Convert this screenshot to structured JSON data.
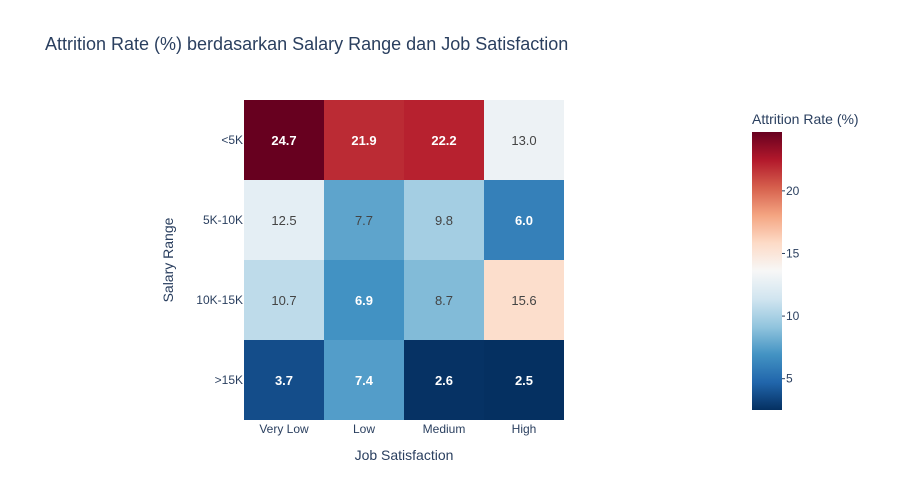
{
  "chart_data": {
    "type": "heatmap",
    "title": "Attrition Rate (%) berdasarkan Salary Range dan Job Satisfaction",
    "xlabel": "Job Satisfaction",
    "ylabel": "Salary Range",
    "x_categories": [
      "Very Low",
      "Low",
      "Medium",
      "High"
    ],
    "y_categories": [
      "<5K",
      "5K-10K",
      "10K-15K",
      ">15K"
    ],
    "values": [
      [
        24.7,
        21.9,
        22.2,
        13.0
      ],
      [
        12.5,
        7.7,
        9.8,
        6.0
      ],
      [
        10.7,
        6.9,
        8.7,
        15.6
      ],
      [
        3.7,
        7.4,
        2.6,
        2.5
      ]
    ],
    "colorbar": {
      "title": "Attrition Rate (%)",
      "ticks": [
        5,
        10,
        15,
        20
      ],
      "range": [
        2.5,
        24.7
      ],
      "colorscale": "RdBu (reversed)"
    }
  }
}
